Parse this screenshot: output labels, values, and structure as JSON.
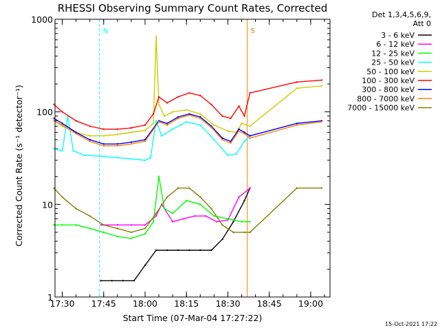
{
  "chart_data": {
    "type": "line",
    "title": "RHESSI Observing Summary Count Rates, Corrected",
    "xlabel": "Start Time (07-Mar-04 17:27:22)",
    "ylabel": "Corrected Count Rate (s⁻¹ detector⁻¹)",
    "yscale": "log",
    "ylim": [
      1,
      1000
    ],
    "xlim": [
      "17:27:22",
      "19:07:00"
    ],
    "x_ticks": [
      "17:30",
      "17:45",
      "18:00",
      "18:15",
      "18:30",
      "18:45",
      "19:00"
    ],
    "y_ticks": [
      "1",
      "10",
      "100",
      "1000"
    ],
    "legend_title": [
      "Det 1,3,4,5,6,9,",
      "Att 0"
    ],
    "legend_position": "right",
    "footer": "15-Oct-2021 17:22",
    "markers": [
      {
        "label": "N",
        "color": "#00ffff",
        "style": "dashed",
        "time": "17:43:30"
      },
      {
        "label": "S",
        "color": "#ff8000",
        "style": "solid",
        "time": "18:37:00"
      }
    ],
    "series": [
      {
        "name": "3 - 6 keV",
        "color": "#000000",
        "x": [
          "17:44",
          "17:48",
          "17:52",
          "17:56",
          "18:00",
          "18:04",
          "18:08",
          "18:12",
          "18:16",
          "18:20",
          "18:24",
          "18:28",
          "18:32",
          "18:36",
          "18:38"
        ],
        "y": [
          1.5,
          1.5,
          1.5,
          1.5,
          2.2,
          3.2,
          3.2,
          3.2,
          3.2,
          3.2,
          3.2,
          4.2,
          6.5,
          11,
          15
        ]
      },
      {
        "name": "6 - 12 keV",
        "color": "#ff00ff",
        "x": [
          "17:44",
          "17:50",
          "17:55",
          "18:00",
          "18:04",
          "18:06",
          "18:10",
          "18:14",
          "18:18",
          "18:22",
          "18:26",
          "18:30",
          "18:34",
          "18:38"
        ],
        "y": [
          6,
          6,
          6,
          6,
          7.5,
          10,
          6.5,
          7,
          7.5,
          7.5,
          6.5,
          6.8,
          12,
          15
        ]
      },
      {
        "name": "12 - 25 keV",
        "color": "#00ff00",
        "x": [
          "17:27",
          "17:30",
          "17:35",
          "17:40",
          "17:45",
          "17:50",
          "17:55",
          "18:00",
          "18:03",
          "18:05",
          "18:07",
          "18:10",
          "18:15",
          "18:20",
          "18:25",
          "18:30",
          "18:35",
          "18:38"
        ],
        "y": [
          6,
          6,
          6,
          5.5,
          5,
          4.5,
          4.3,
          4.8,
          6.5,
          20,
          9,
          8,
          11,
          10,
          7.5,
          7,
          6.5,
          6.5
        ]
      },
      {
        "name": "25 - 50 keV",
        "color": "#00ffff",
        "x": [
          "17:27",
          "17:30",
          "17:32",
          "17:34",
          "17:38",
          "17:45",
          "17:50",
          "17:55",
          "18:00",
          "18:02",
          "18:04",
          "18:06",
          "18:10",
          "18:15",
          "18:20",
          "18:25",
          "18:30",
          "18:33",
          "18:36",
          "18:38"
        ],
        "y": [
          40,
          38,
          90,
          38,
          34,
          33,
          32,
          31,
          30,
          32,
          80,
          55,
          65,
          78,
          72,
          50,
          34,
          35,
          48,
          55
        ]
      },
      {
        "name": "50 - 100 keV",
        "color": "#cccc00",
        "x": [
          "17:27",
          "17:30",
          "17:35",
          "17:40",
          "17:45",
          "17:50",
          "17:55",
          "18:00",
          "18:03",
          "18:04",
          "18:05",
          "18:07",
          "18:10",
          "18:15",
          "18:20",
          "18:25",
          "18:30",
          "18:33",
          "18:35",
          "18:38",
          "18:55",
          "19:04"
        ],
        "y": [
          80,
          70,
          60,
          55,
          55,
          57,
          60,
          63,
          75,
          650,
          120,
          90,
          100,
          105,
          95,
          72,
          62,
          60,
          75,
          70,
          180,
          190
        ]
      },
      {
        "name": "100 - 300 keV",
        "color": "#ff0000",
        "x": [
          "17:27",
          "17:30",
          "17:35",
          "17:40",
          "17:45",
          "17:50",
          "17:55",
          "18:00",
          "18:03",
          "18:05",
          "18:08",
          "18:12",
          "18:16",
          "18:20",
          "18:24",
          "18:28",
          "18:31",
          "18:34",
          "18:36",
          "18:38",
          "18:55",
          "19:04"
        ],
        "y": [
          120,
          100,
          80,
          70,
          65,
          65,
          67,
          72,
          95,
          145,
          125,
          145,
          160,
          150,
          120,
          90,
          85,
          115,
          90,
          160,
          210,
          220
        ]
      },
      {
        "name": "300 - 800 keV",
        "color": "#0000ff",
        "x": [
          "17:27",
          "17:30",
          "17:35",
          "17:40",
          "17:45",
          "17:50",
          "17:55",
          "18:00",
          "18:05",
          "18:08",
          "18:12",
          "18:16",
          "18:20",
          "18:24",
          "18:28",
          "18:31",
          "18:34",
          "18:36",
          "18:38",
          "18:55",
          "19:04"
        ],
        "y": [
          85,
          75,
          60,
          50,
          45,
          45,
          47,
          50,
          80,
          75,
          88,
          95,
          88,
          70,
          52,
          48,
          65,
          60,
          55,
          75,
          80
        ]
      },
      {
        "name": "800 - 7000 keV",
        "color": "#ff8000",
        "x": [
          "17:27",
          "17:30",
          "17:35",
          "17:40",
          "17:45",
          "17:50",
          "17:55",
          "18:00",
          "18:05",
          "18:08",
          "18:12",
          "18:16",
          "18:20",
          "18:24",
          "18:28",
          "18:31",
          "18:34",
          "18:36",
          "18:38",
          "18:55",
          "19:04"
        ],
        "y": [
          80,
          72,
          58,
          48,
          43,
          43,
          45,
          48,
          78,
          72,
          85,
          92,
          85,
          68,
          50,
          46,
          62,
          58,
          52,
          72,
          78
        ]
      },
      {
        "name": "7000 - 15000 keV",
        "color": "#808000",
        "x": [
          "17:27",
          "17:30",
          "17:35",
          "17:40",
          "17:45",
          "17:50",
          "17:55",
          "18:00",
          "18:04",
          "18:08",
          "18:12",
          "18:16",
          "18:20",
          "18:24",
          "18:28",
          "18:32",
          "18:36",
          "18:38",
          "18:55",
          "19:04"
        ],
        "y": [
          15,
          12,
          9,
          7.5,
          6,
          5.5,
          5,
          5.5,
          8,
          12,
          15,
          15,
          12,
          9,
          6,
          5,
          5,
          5,
          15,
          15
        ]
      }
    ]
  }
}
